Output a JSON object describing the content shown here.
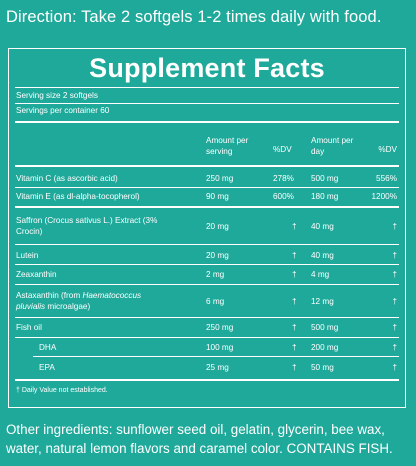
{
  "direction": "Direction: Take 2 softgels 1-2 times daily with food.",
  "facts": {
    "title": "Supplement Facts",
    "serving_size": "Serving size 2 softgels",
    "servings_per_container": "Servings per container 60",
    "headers": {
      "amount_serving": "Amount per serving",
      "dv_serving": "%DV",
      "amount_day": "Amount per day",
      "dv_day": "%DV"
    },
    "rows": [
      {
        "name": "Vitamin C (as ascorbic acid)",
        "amount_serving": "250 mg",
        "dv_serving": "278%",
        "amount_day": "500 mg",
        "dv_day": "556%"
      },
      {
        "name": "Vitamin E (as dl-alpha-tocopherol)",
        "amount_serving": "90 mg",
        "dv_serving": "600%",
        "amount_day": "180 mg",
        "dv_day": "1200%"
      },
      {
        "name": "Saffron (Crocus sativus L.) Extract (3% Crocin)",
        "amount_serving": "20 mg",
        "dv_serving": "†",
        "amount_day": "40 mg",
        "dv_day": "†"
      },
      {
        "name": "Lutein",
        "amount_serving": "20 mg",
        "dv_serving": "†",
        "amount_day": "40 mg",
        "dv_day": "†"
      },
      {
        "name": "Zeaxanthin",
        "amount_serving": "2 mg",
        "dv_serving": "†",
        "amount_day": "4 mg",
        "dv_day": "†"
      },
      {
        "name_prefix": "Astaxanthin (from ",
        "name_italic_1": "Haematococcus",
        "name_italic_2": "pluvialis",
        "name_suffix": " microalgae)",
        "amount_serving": "6 mg",
        "dv_serving": "†",
        "amount_day": "12 mg",
        "dv_day": "†"
      },
      {
        "name": "Fish oil",
        "amount_serving": "250 mg",
        "dv_serving": "†",
        "amount_day": "500 mg",
        "dv_day": "†"
      },
      {
        "name": "DHA",
        "amount_serving": "100 mg",
        "dv_serving": "†",
        "amount_day": "200 mg",
        "dv_day": "†"
      },
      {
        "name": "EPA",
        "amount_serving": "25 mg",
        "dv_serving": "†",
        "amount_day": "50 mg",
        "dv_day": "†"
      }
    ],
    "footnote": "† Daily Value not established."
  },
  "other_ingredients": "Other ingredients: sunflower seed oil, gelatin, glycerin, bee wax, water, natural lemon flavors and caramel color. CONTAINS FISH."
}
